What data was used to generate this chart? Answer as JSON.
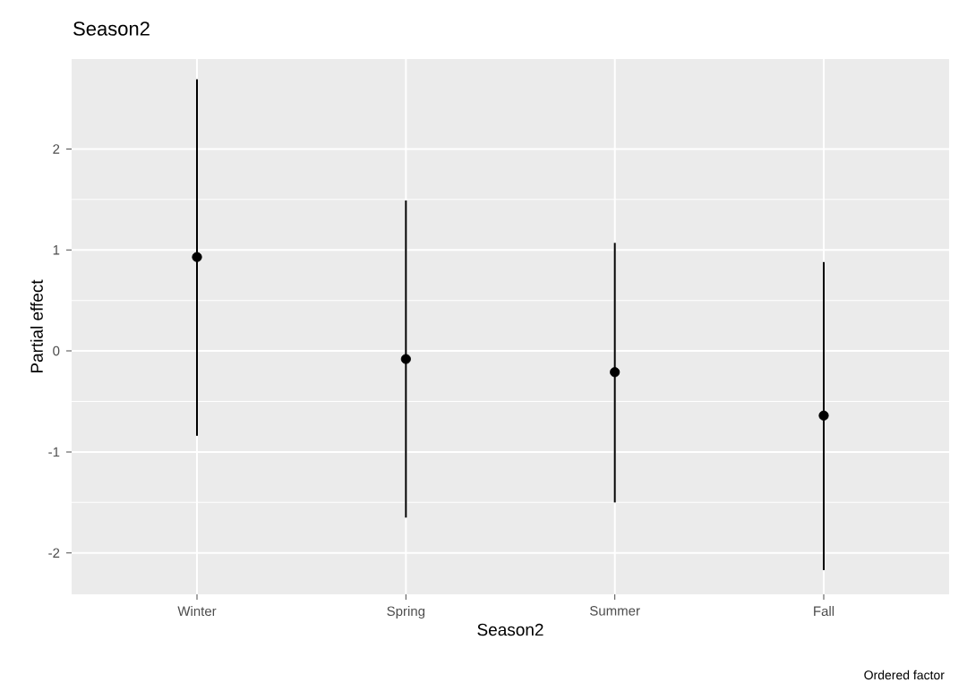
{
  "chart_data": {
    "type": "scatter",
    "title": "Season2",
    "xlabel": "Season2",
    "ylabel": "Partial effect",
    "categories": [
      "Winter",
      "Spring",
      "Summer",
      "Fall"
    ],
    "values": [
      0.93,
      -0.08,
      -0.21,
      -0.64
    ],
    "errors": [
      [
        -0.84,
        2.69
      ],
      [
        -1.65,
        1.49
      ],
      [
        -1.5,
        1.07
      ],
      [
        -2.17,
        0.88
      ]
    ],
    "color": "#000000",
    "marker": "circle",
    "grid": true,
    "ylim": [
      -2.41,
      2.89
    ],
    "yticks": [
      -2,
      -1,
      0,
      1,
      2
    ],
    "annotations": [
      "Ordered factor"
    ]
  }
}
